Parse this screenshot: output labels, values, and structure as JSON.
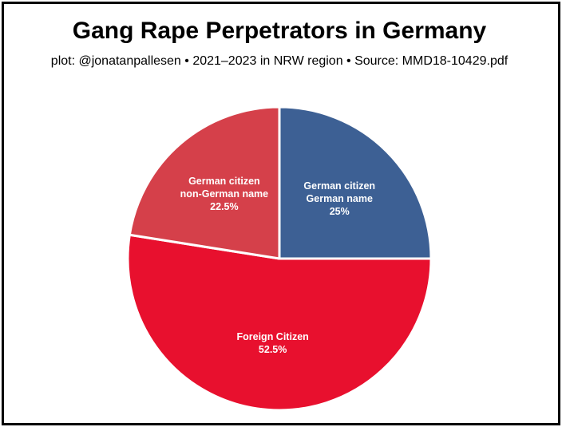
{
  "header": {
    "title": "Gang Rape Perpetrators in Germany",
    "subtitle": "plot: @jonatanpallesen • 2021–2023 in NRW region • Source: MMD18-10429.pdf"
  },
  "chart_data": {
    "type": "pie",
    "title": "Gang Rape Perpetrators in Germany",
    "subtitle": "plot: @jonatanpallesen • 2021–2023 in NRW region • Source: MMD18-10429.pdf",
    "slices": [
      {
        "id": "german-citizen-german-name",
        "label_lines": [
          "German citizen",
          "German name",
          "25%"
        ],
        "value": 25,
        "color": "#3d6094"
      },
      {
        "id": "foreign-citizen",
        "label_lines": [
          "Foreign Citizen",
          "52.5%"
        ],
        "value": 52.5,
        "color": "#e8102e"
      },
      {
        "id": "german-citizen-non-german-name",
        "label_lines": [
          "German citizen",
          "non-German name",
          "22.5%"
        ],
        "value": 22.5,
        "color": "#d5404a"
      }
    ],
    "start_angle_deg": 0,
    "direction": "clockwise",
    "slice_border_color": "#ffffff"
  }
}
